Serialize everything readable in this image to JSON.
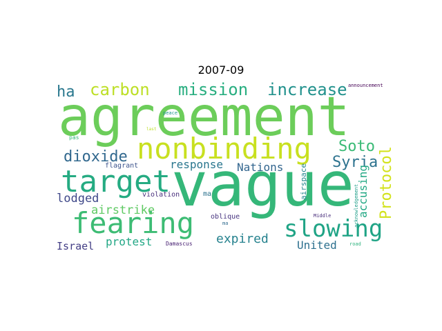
{
  "title": "2007-09",
  "words": [
    {
      "text": "agreement",
      "color": "#6ccd5a"
    },
    {
      "text": "vague",
      "color": "#35b779"
    },
    {
      "text": "nonbinding",
      "color": "#c8e020"
    },
    {
      "text": "target",
      "color": "#25ab82"
    },
    {
      "text": "fearing",
      "color": "#3dbc74"
    },
    {
      "text": "slowing",
      "color": "#20a486"
    },
    {
      "text": "mission",
      "color": "#28ae80"
    },
    {
      "text": "increase",
      "color": "#21918c"
    },
    {
      "text": "carbon",
      "color": "#bddf26"
    },
    {
      "text": "ha",
      "color": "#2a788e"
    },
    {
      "text": "dioxide",
      "color": "#31688e"
    },
    {
      "text": "Soto",
      "color": "#3aba76"
    },
    {
      "text": "Syria",
      "color": "#2c728e"
    },
    {
      "text": "Protocol",
      "color": "#d2e21b"
    },
    {
      "text": "response",
      "color": "#2a768e"
    },
    {
      "text": "Nations",
      "color": "#32658e"
    },
    {
      "text": "accusing",
      "color": "#22a884"
    },
    {
      "text": "lodged",
      "color": "#3f4889"
    },
    {
      "text": "airstrike",
      "color": "#5ec962"
    },
    {
      "text": "expired",
      "color": "#26828e"
    },
    {
      "text": "protest",
      "color": "#22a785"
    },
    {
      "text": "Israel",
      "color": "#433e85"
    },
    {
      "text": "United",
      "color": "#2d708e"
    },
    {
      "text": "flagrant",
      "color": "#3b528b"
    },
    {
      "text": "violation",
      "color": "#472d7b"
    },
    {
      "text": "airspace",
      "color": "#24868e"
    },
    {
      "text": "oblique",
      "color": "#46337f"
    },
    {
      "text": "ma",
      "color": "#2c728e"
    },
    {
      "text": "ma",
      "color": "#2f6b8e"
    },
    {
      "text": "Middle",
      "color": "#472c7a"
    },
    {
      "text": "acknowledgement",
      "color": "#1f9e89"
    },
    {
      "text": "Damascus",
      "color": "#482173"
    },
    {
      "text": "road",
      "color": "#2db27d"
    },
    {
      "text": "announcement",
      "color": "#440154"
    },
    {
      "text": "peace",
      "color": "#1f968b"
    },
    {
      "text": "last",
      "color": "#bddf26"
    },
    {
      "text": "pas",
      "color": "#35b779"
    }
  ]
}
